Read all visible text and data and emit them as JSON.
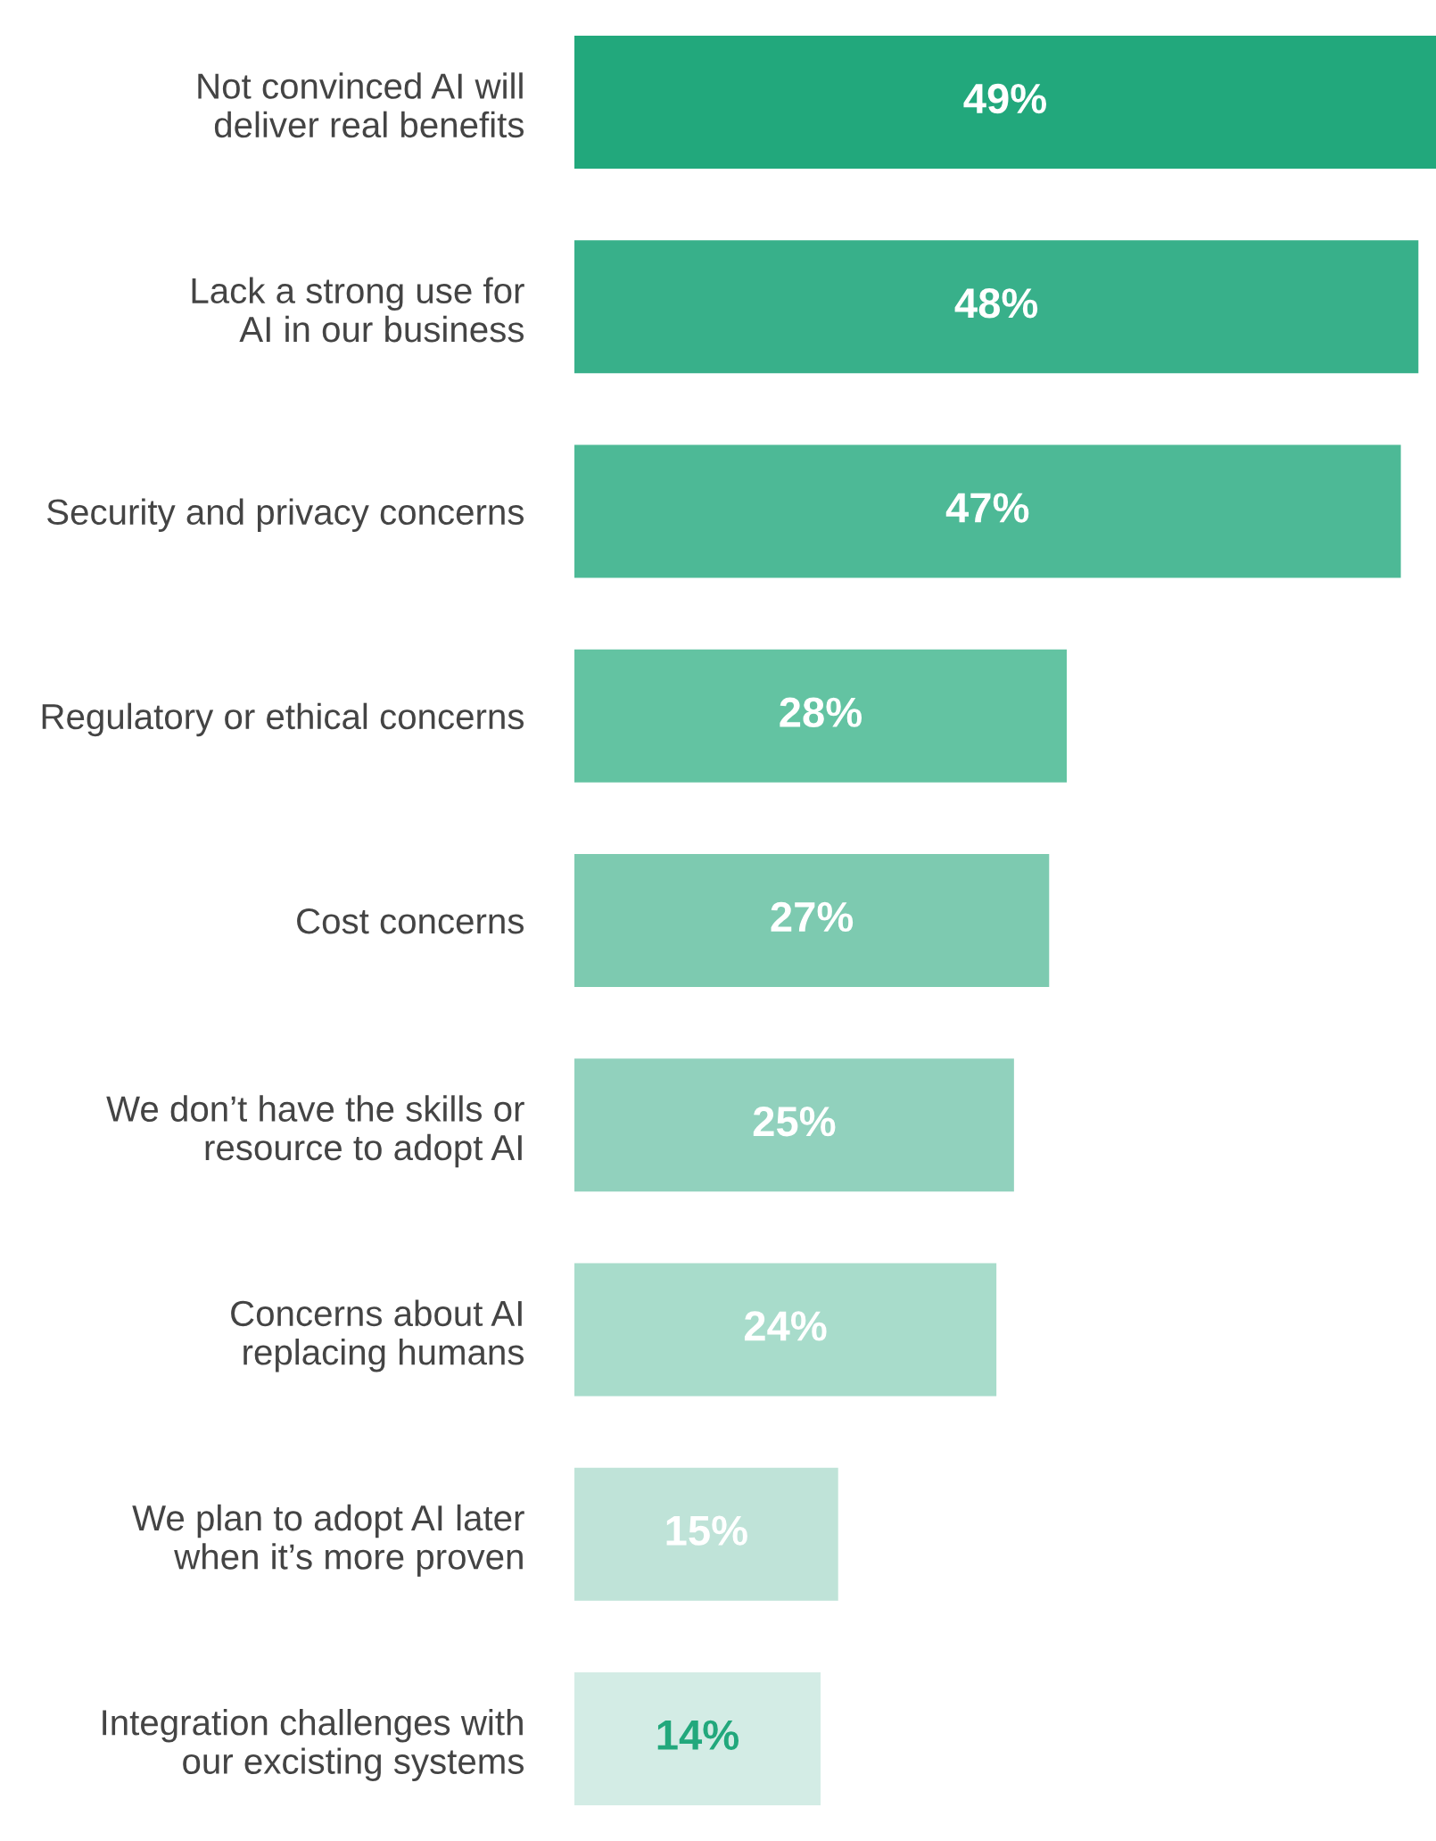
{
  "chart_data": {
    "type": "bar",
    "orientation": "horizontal",
    "value_labels": [
      "49%",
      "48%",
      "47%",
      "28%",
      "27%",
      "25%",
      "24%",
      "15%",
      "14%"
    ],
    "categories": [
      "Not convinced AI will\ndeliver real benefits",
      "Lack a strong use for\nAI in our business",
      "Security and privacy concerns",
      "Regulatory or ethical concerns",
      "Cost concerns",
      "We don’t have the skills or\nresource to adopt AI",
      "Concerns about AI\nreplacing humans",
      "We plan to adopt AI later\nwhen it’s more proven",
      "Integration challenges with\nour excisting systems"
    ],
    "values": [
      49,
      48,
      47,
      28,
      27,
      25,
      24,
      15,
      14
    ],
    "colors": [
      "#22a87c",
      "#38b08a",
      "#4db996",
      "#63c3a2",
      "#7dcab0",
      "#91d1bd",
      "#a8dccb",
      "#bfe3d8",
      "#d3ece5"
    ]
  }
}
